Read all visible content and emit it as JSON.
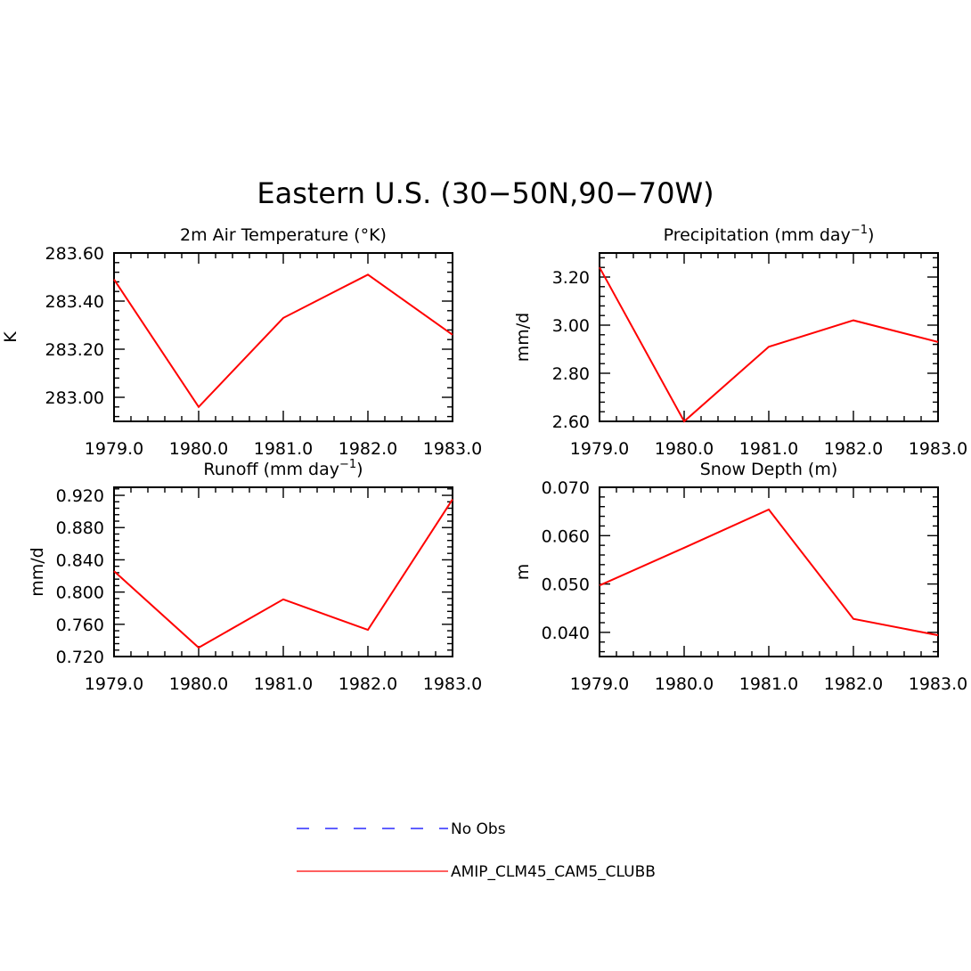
{
  "figure": {
    "title": "Eastern U.S. (30−50N,90−70W)"
  },
  "chart_data": [
    {
      "type": "line",
      "title": "2m Air Temperature (°K)",
      "xlabel": "",
      "ylabel": "K",
      "x": [
        1979,
        1980,
        1981,
        1982,
        1983
      ],
      "xticks": [
        "1979.0",
        "1980.0",
        "1981.0",
        "1982.0",
        "1983.0"
      ],
      "xlim": [
        1979,
        1983
      ],
      "ylim": [
        282.9,
        283.6
      ],
      "yticks": [
        283.0,
        283.2,
        283.4,
        283.6
      ],
      "ytick_labels": [
        "283.00",
        "283.20",
        "283.40",
        "283.60"
      ],
      "series": [
        {
          "name": "AMIP_CLM45_CAM5_CLUBB",
          "color": "#ff0000",
          "values": [
            283.49,
            282.96,
            283.33,
            283.51,
            283.26
          ]
        }
      ]
    },
    {
      "type": "line",
      "title": "Precipitation (mm day",
      "title_sup": "−1",
      "title_end": ")",
      "xlabel": "",
      "ylabel": "mm/d",
      "x": [
        1979,
        1980,
        1981,
        1982,
        1983
      ],
      "xticks": [
        "1979.0",
        "1980.0",
        "1981.0",
        "1982.0",
        "1983.0"
      ],
      "xlim": [
        1979,
        1983
      ],
      "ylim": [
        2.6,
        3.3
      ],
      "yticks": [
        2.6,
        2.8,
        3.0,
        3.2
      ],
      "ytick_labels": [
        "2.60",
        "2.80",
        "3.00",
        "3.20"
      ],
      "series": [
        {
          "name": "AMIP_CLM45_CAM5_CLUBB",
          "color": "#ff0000",
          "values": [
            3.24,
            2.6,
            2.91,
            3.02,
            2.93
          ]
        }
      ]
    },
    {
      "type": "line",
      "title": "Runoff (mm day",
      "title_sup": "−1",
      "title_end": ")",
      "xlabel": "",
      "ylabel": "mm/d",
      "x": [
        1979,
        1980,
        1981,
        1982,
        1983
      ],
      "xticks": [
        "1979.0",
        "1980.0",
        "1981.0",
        "1982.0",
        "1983.0"
      ],
      "xlim": [
        1979,
        1983
      ],
      "ylim": [
        0.72,
        0.93
      ],
      "yticks": [
        0.72,
        0.76,
        0.8,
        0.84,
        0.88,
        0.92
      ],
      "ytick_labels": [
        "0.720",
        "0.760",
        "0.800",
        "0.840",
        "0.880",
        "0.920"
      ],
      "series": [
        {
          "name": "AMIP_CLM45_CAM5_CLUBB",
          "color": "#ff0000",
          "values": [
            0.826,
            0.731,
            0.791,
            0.753,
            0.915
          ]
        }
      ]
    },
    {
      "type": "line",
      "title": "Snow Depth (m)",
      "xlabel": "",
      "ylabel": "m",
      "x": [
        1979,
        1980,
        1981,
        1982,
        1983
      ],
      "xticks": [
        "1979.0",
        "1980.0",
        "1981.0",
        "1982.0",
        "1983.0"
      ],
      "xlim": [
        1979,
        1983
      ],
      "ylim": [
        0.035,
        0.07
      ],
      "yticks": [
        0.04,
        0.05,
        0.06,
        0.07
      ],
      "ytick_labels": [
        "0.040",
        "0.050",
        "0.060",
        "0.070"
      ],
      "series": [
        {
          "name": "AMIP_CLM45_CAM5_CLUBB",
          "color": "#ff0000",
          "values": [
            0.0497,
            0.0575,
            0.0654,
            0.0428,
            0.0394
          ]
        }
      ]
    }
  ],
  "legend": {
    "items": [
      {
        "label": "No Obs",
        "color": "#0000ff",
        "style": "dashed"
      },
      {
        "label": "AMIP_CLM45_CAM5_CLUBB",
        "color": "#ff0000",
        "style": "solid"
      }
    ]
  }
}
